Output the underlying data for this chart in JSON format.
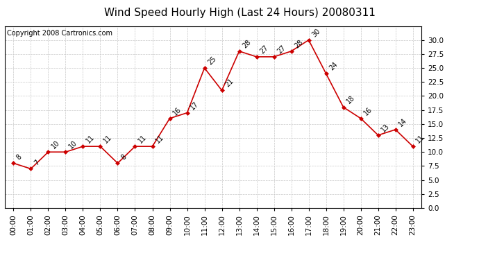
{
  "title": "Wind Speed Hourly High (Last 24 Hours) 20080311",
  "copyright": "Copyright 2008 Cartronics.com",
  "hours": [
    "00:00",
    "01:00",
    "02:00",
    "03:00",
    "04:00",
    "05:00",
    "06:00",
    "07:00",
    "08:00",
    "09:00",
    "10:00",
    "11:00",
    "12:00",
    "13:00",
    "14:00",
    "15:00",
    "16:00",
    "17:00",
    "18:00",
    "19:00",
    "20:00",
    "21:00",
    "22:00",
    "23:00"
  ],
  "values": [
    8,
    7,
    10,
    10,
    11,
    11,
    8,
    11,
    11,
    16,
    17,
    25,
    21,
    28,
    27,
    27,
    28,
    30,
    24,
    18,
    16,
    13,
    14,
    11
  ],
  "line_color": "#cc0000",
  "marker_color": "#cc0000",
  "bg_color": "#ffffff",
  "grid_color": "#c8c8c8",
  "ylim": [
    0,
    32.5
  ],
  "yticks": [
    0.0,
    2.5,
    5.0,
    7.5,
    10.0,
    12.5,
    15.0,
    17.5,
    20.0,
    22.5,
    25.0,
    27.5,
    30.0
  ],
  "title_fontsize": 11,
  "label_fontsize": 7.5,
  "copyright_fontsize": 7,
  "annotation_fontsize": 7
}
